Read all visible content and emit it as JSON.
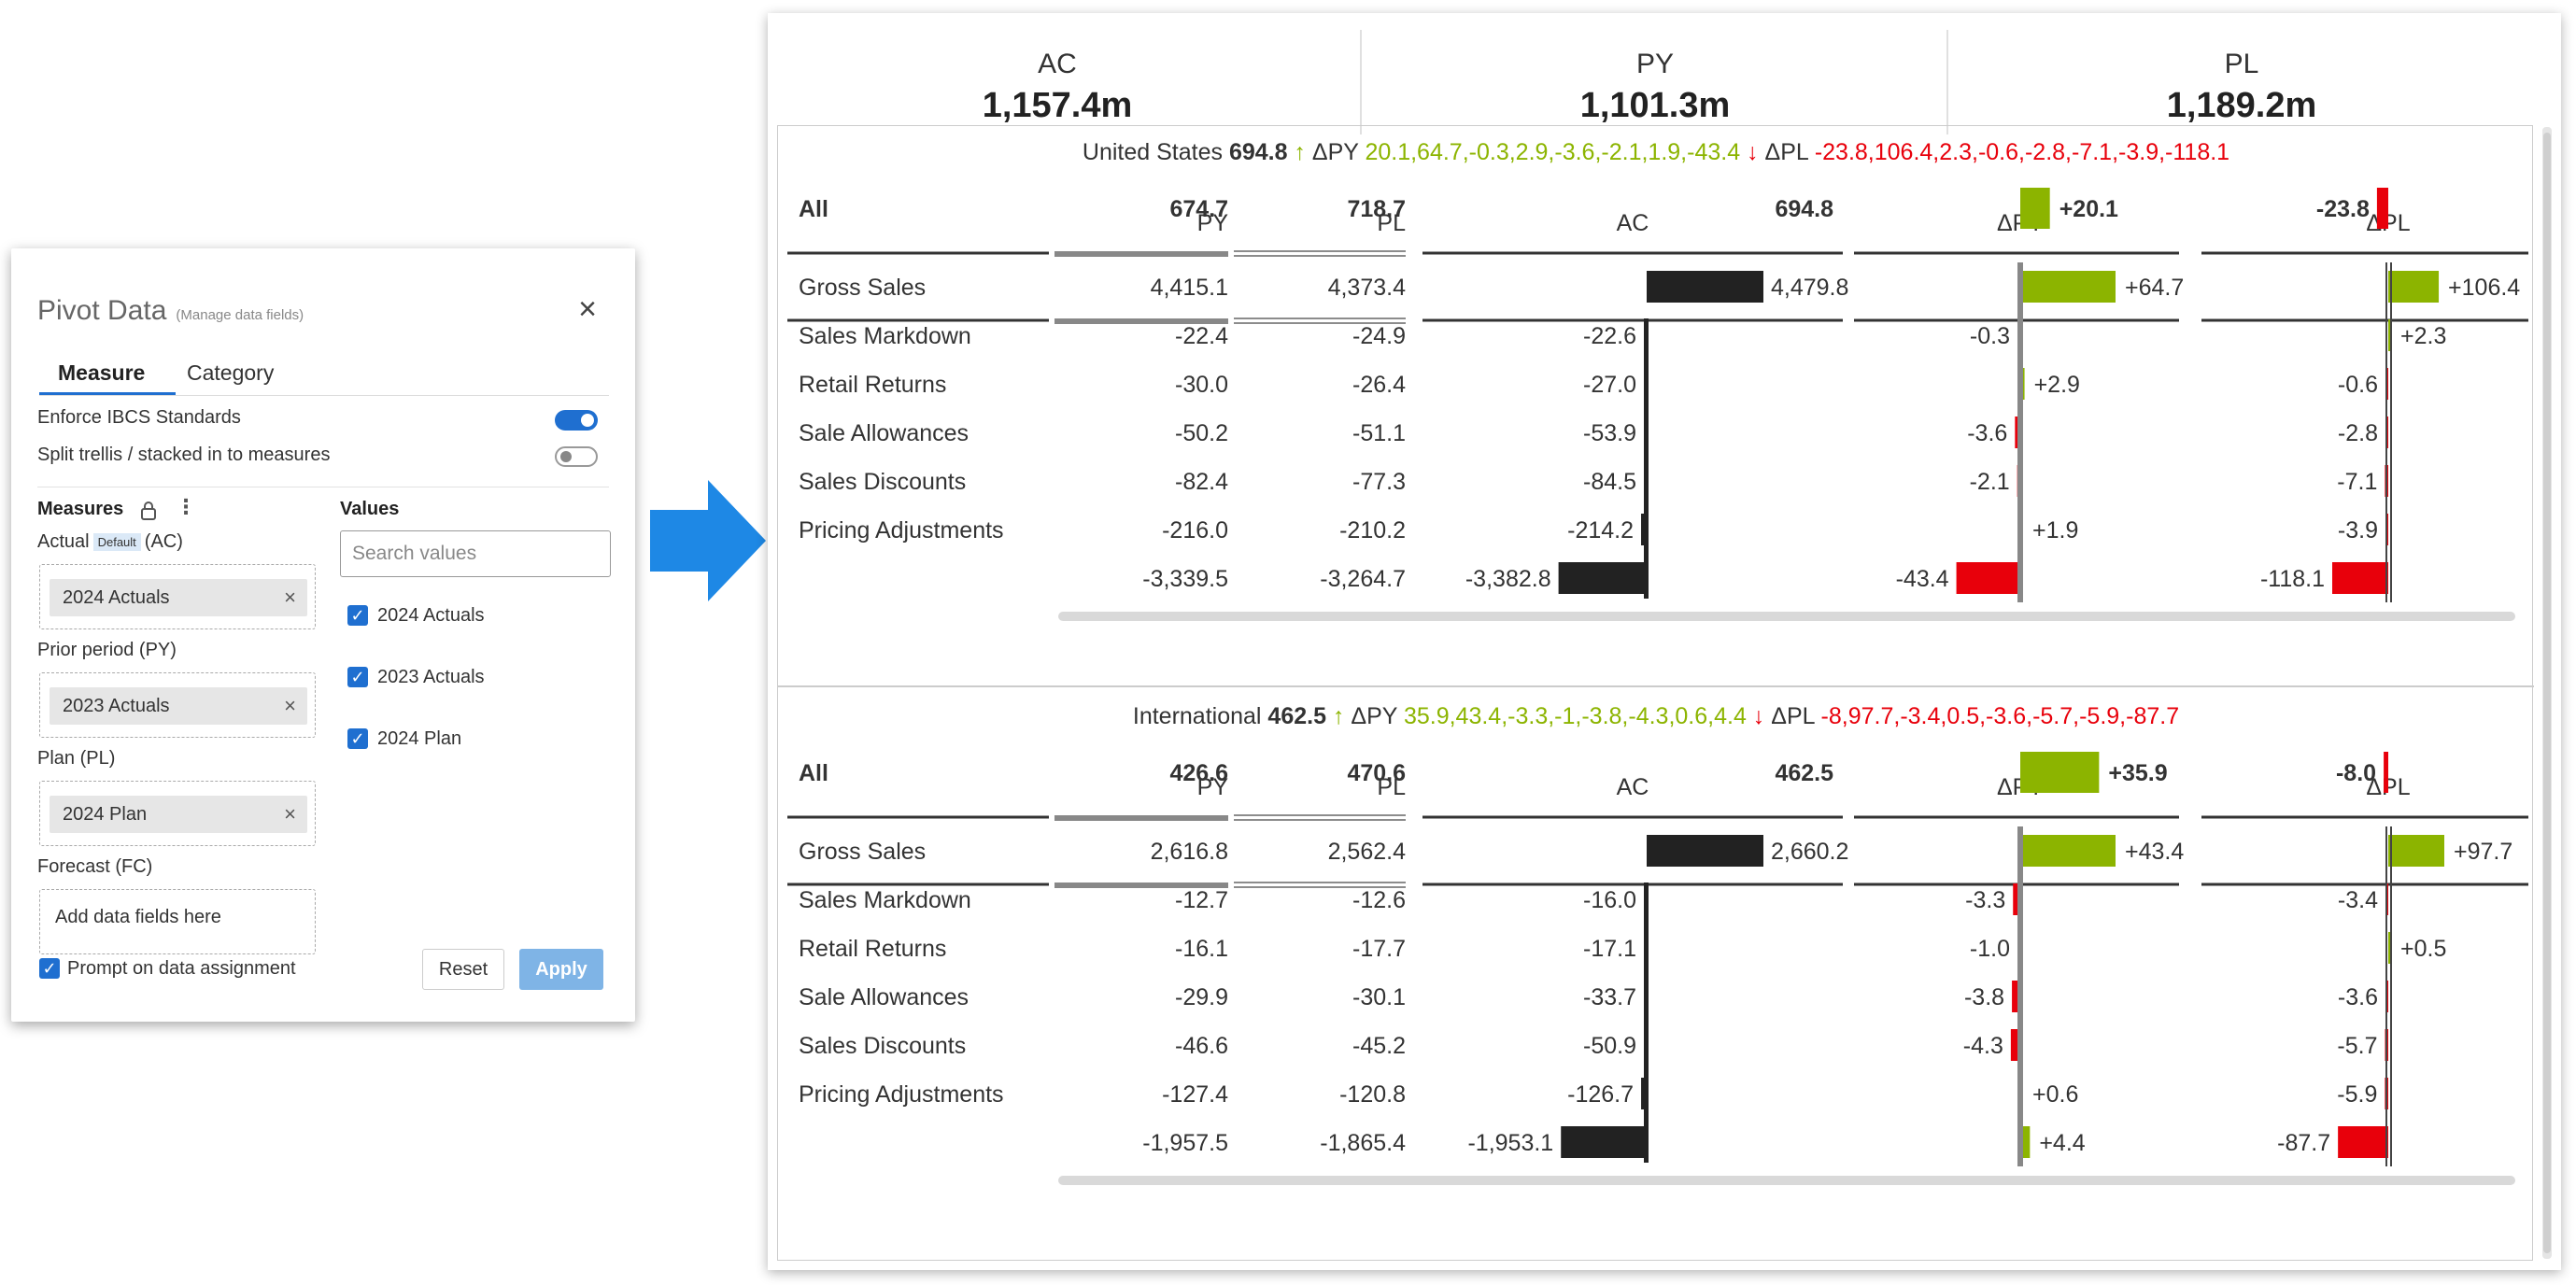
{
  "panel": {
    "title": "Pivot Data",
    "subtitle": "(Manage data fields)",
    "close_glyph": "×",
    "tabs": [
      {
        "label": "Measure"
      },
      {
        "label": "Category"
      }
    ],
    "options": [
      {
        "label": "Enforce IBCS Standards",
        "checked": true
      },
      {
        "label": "Split trellis / stacked in to measures",
        "checked": false
      }
    ],
    "measures_header": "Measures",
    "values_header": "Values",
    "fields": [
      {
        "label": "Actual",
        "badge": "Default",
        "code": "(AC)",
        "chip": "2024 Actuals"
      },
      {
        "label": "Prior period  (PY)",
        "chip": "2023 Actuals"
      },
      {
        "label": "Plan  (PL)",
        "chip": "2024 Plan"
      },
      {
        "label": "Forecast  (FC)",
        "placeholder": "Add data fields here"
      }
    ],
    "search_placeholder": "Search values",
    "values": [
      "2024 Actuals",
      "2023 Actuals",
      "2024 Plan"
    ],
    "prompt_label": "Prompt on data assignment",
    "reset_label": "Reset",
    "apply_label": "Apply",
    "icons": {
      "lock": "lock-icon",
      "kebab": "more-vertical-icon",
      "close": "close-icon",
      "arrow": "arrow-right-icon"
    }
  },
  "kpis": [
    {
      "label": "AC",
      "value": "1,157.4m"
    },
    {
      "label": "PY",
      "value": "1,101.3m"
    },
    {
      "label": "PL",
      "value": "1,189.2m"
    }
  ],
  "colors": {
    "positive": "#8cb400",
    "negative": "#e8000b",
    "actual": "#222222",
    "arrow": "#1e88e5",
    "axis": "#888888"
  },
  "chart_data": {
    "type": "table",
    "columns": [
      "PY",
      "PL",
      "AC",
      "ΔPY",
      "ΔPL"
    ],
    "rows": [
      "All",
      "Gross Sales",
      "Sales Markdown",
      "Retail Returns",
      "Sale Allowances",
      "Sales Discounts",
      "Pricing Adjustments",
      ""
    ],
    "groups": [
      {
        "name": "United States",
        "value": "694.8",
        "dpy_label": "ΔPY",
        "dpy": [
          20.1,
          64.7,
          -0.3,
          2.9,
          -3.6,
          -2.1,
          1.9,
          -43.4
        ],
        "dpl_label": "ΔPL",
        "dpl": [
          -23.8,
          106.4,
          2.3,
          -0.6,
          -2.8,
          -7.1,
          -3.9,
          -118.1
        ],
        "py": [
          674.7,
          4415.1,
          -22.4,
          -30.0,
          -50.2,
          -82.4,
          -216.0,
          -3339.5
        ],
        "pl": [
          718.7,
          4373.4,
          -24.9,
          -26.4,
          -51.1,
          -77.3,
          -210.2,
          -3264.7
        ],
        "ac": [
          694.8,
          4479.8,
          -22.6,
          -27.0,
          -53.9,
          -84.5,
          -214.2,
          -3382.8
        ],
        "py_text": [
          "674.7",
          "4,415.1",
          "-22.4",
          "-30.0",
          "-50.2",
          "-82.4",
          "-216.0",
          "-3,339.5"
        ],
        "pl_text": [
          "718.7",
          "4,373.4",
          "-24.9",
          "-26.4",
          "-51.1",
          "-77.3",
          "-210.2",
          "-3,264.7"
        ],
        "ac_text": [
          "694.8",
          "4,479.8",
          "-22.6",
          "-27.0",
          "-53.9",
          "-84.5",
          "-214.2",
          "-3,382.8"
        ],
        "dpy_text": [
          "+20.1",
          "+64.7",
          "-0.3",
          "+2.9",
          "-3.6",
          "-2.1",
          "+1.9",
          "-43.4"
        ],
        "dpl_text": [
          "-23.8",
          "+106.4",
          "+2.3",
          "-0.6",
          "-2.8",
          "-7.1",
          "-3.9",
          "-118.1"
        ]
      },
      {
        "name": "International",
        "value": "462.5",
        "dpy_label": "ΔPY",
        "dpy": [
          35.9,
          43.4,
          -3.3,
          -1.0,
          -3.8,
          -4.3,
          0.6,
          4.4
        ],
        "dpl_label": "ΔPL",
        "dpl": [
          -8.0,
          97.7,
          -3.4,
          0.5,
          -3.6,
          -5.7,
          -5.9,
          -87.7
        ],
        "py": [
          426.6,
          2616.8,
          -12.7,
          -16.1,
          -29.9,
          -46.6,
          -127.4,
          -1957.5
        ],
        "pl": [
          470.6,
          2562.4,
          -12.6,
          -17.7,
          -30.1,
          -45.2,
          -120.8,
          -1865.4
        ],
        "ac": [
          462.5,
          2660.2,
          -16.0,
          -17.1,
          -33.7,
          -50.9,
          -126.7,
          -1953.1
        ],
        "py_text": [
          "426.6",
          "2,616.8",
          "-12.7",
          "-16.1",
          "-29.9",
          "-46.6",
          "-127.4",
          "-1,957.5"
        ],
        "pl_text": [
          "470.6",
          "2,562.4",
          "-12.6",
          "-17.7",
          "-30.1",
          "-45.2",
          "-120.8",
          "-1,865.4"
        ],
        "ac_text": [
          "462.5",
          "2,660.2",
          "-16.0",
          "-17.1",
          "-33.7",
          "-50.9",
          "-126.7",
          "-1,953.1"
        ],
        "dpy_text": [
          "+35.9",
          "+43.4",
          "-3.3",
          "-1.0",
          "-3.8",
          "-4.3",
          "+0.6",
          "+4.4"
        ],
        "dpl_text": [
          "-8.0",
          "+97.7",
          "-3.4",
          "+0.5",
          "-3.6",
          "-5.7",
          "-5.9",
          "-87.7"
        ]
      }
    ]
  }
}
